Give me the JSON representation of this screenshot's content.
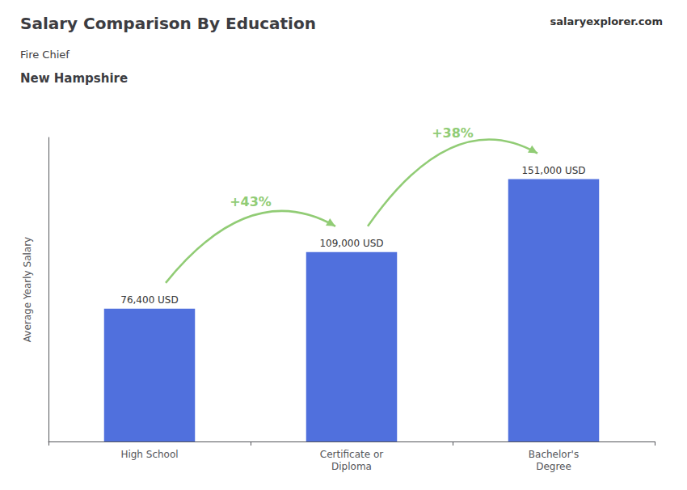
{
  "chart_data": {
    "type": "bar",
    "title": "Salary Comparison By Education",
    "subtitle": [
      "Fire Chief",
      "New Hampshire"
    ],
    "ylabel": "Average Yearly Salary",
    "categories": [
      "High School",
      "Certificate or\nDiploma",
      "Bachelor's\nDegree"
    ],
    "values": [
      76400,
      109000,
      151000
    ],
    "value_labels": [
      "76,400 USD",
      "109,000 USD",
      "151,000 USD"
    ],
    "data_labels": true,
    "ylim": [
      0,
      175000
    ],
    "grid": false,
    "tick_labels": "x",
    "annotations": [
      {
        "text": "+43%",
        "between": [
          "High School",
          "Certificate or\nDiploma"
        ]
      },
      {
        "text": "+38%",
        "between": [
          "Certificate or\nDiploma",
          "Bachelor's\nDegree"
        ]
      },
      {
        "text": "salaryexplorer.com"
      }
    ]
  }
}
